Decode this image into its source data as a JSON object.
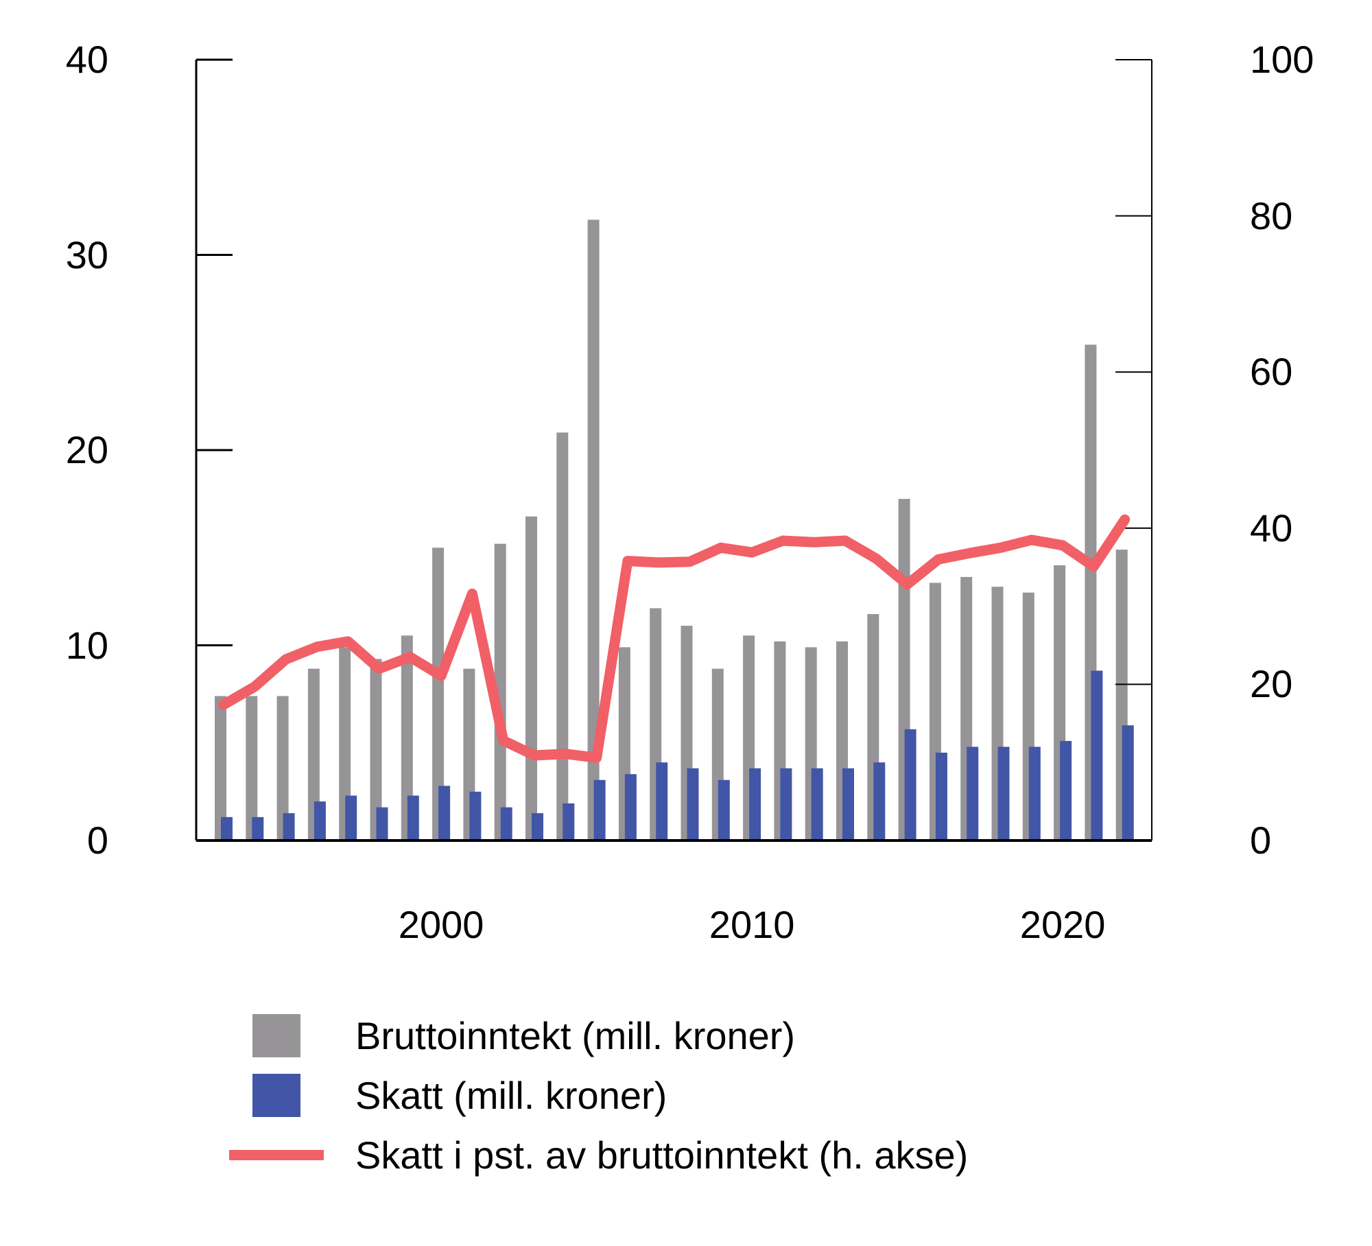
{
  "chart_data": {
    "type": "bar",
    "title": "",
    "xlabel": "",
    "ylabel": "",
    "y2label": "",
    "x": [
      1993,
      1994,
      1995,
      1996,
      1997,
      1998,
      1999,
      2000,
      2001,
      2002,
      2003,
      2004,
      2005,
      2006,
      2007,
      2008,
      2009,
      2010,
      2011,
      2012,
      2013,
      2014,
      2015,
      2016,
      2017,
      2018,
      2019,
      2020,
      2021,
      2022
    ],
    "x_tick_labels": [
      "2000",
      "2010",
      "2020"
    ],
    "x_ticks": [
      2000,
      2010,
      2020
    ],
    "ylim": [
      0,
      40
    ],
    "y_ticks": [
      0,
      10,
      20,
      30,
      40
    ],
    "y2lim": [
      0,
      100
    ],
    "y2_ticks": [
      0,
      20,
      40,
      60,
      80,
      100
    ],
    "grid": false,
    "legend_position": "bottom",
    "series": [
      {
        "name": "Bruttoinntekt (mill. kroner)",
        "type": "bar",
        "axis": "left",
        "color": "#969497",
        "values": [
          7.4,
          7.4,
          7.4,
          8.8,
          9.9,
          9.3,
          10.5,
          15.0,
          8.8,
          15.2,
          16.6,
          20.9,
          31.8,
          9.9,
          11.9,
          11.0,
          8.8,
          10.5,
          10.2,
          9.9,
          10.2,
          11.6,
          17.5,
          13.2,
          13.5,
          13.0,
          12.7,
          14.1,
          25.4,
          14.9
        ]
      },
      {
        "name": "Skatt (mill. kroner)",
        "type": "bar",
        "axis": "left",
        "color": "#4156A6",
        "values": [
          1.2,
          1.2,
          1.4,
          2.0,
          2.3,
          1.7,
          2.3,
          2.8,
          2.5,
          1.7,
          1.4,
          1.9,
          3.1,
          3.4,
          4.0,
          3.7,
          3.1,
          3.7,
          3.7,
          3.7,
          3.7,
          4.0,
          5.7,
          4.5,
          4.8,
          4.8,
          4.8,
          5.1,
          8.7,
          5.9
        ]
      },
      {
        "name": "Skatt i pst. av bruttoinntekt (h. akse)",
        "type": "line",
        "axis": "right",
        "color": "#F06066",
        "values": [
          17.4,
          19.7,
          23.2,
          24.8,
          25.5,
          22.0,
          23.5,
          21.1,
          31.6,
          12.8,
          10.9,
          11.1,
          10.6,
          35.8,
          35.6,
          35.7,
          37.5,
          36.9,
          38.4,
          38.2,
          38.4,
          36.1,
          32.8,
          36.0,
          36.8,
          37.5,
          38.5,
          37.8,
          35.1,
          41.1
        ]
      }
    ]
  },
  "axes": {
    "left_ticks": [
      "0",
      "10",
      "20",
      "30",
      "40"
    ],
    "right_ticks": [
      "0",
      "20",
      "40",
      "60",
      "80",
      "100"
    ],
    "x_ticks": [
      "2000",
      "2010",
      "2020"
    ]
  },
  "legend": {
    "items": [
      {
        "label": "Bruttoinntekt (mill. kroner)",
        "kind": "bar",
        "color": "#969497"
      },
      {
        "label": "Skatt (mill. kroner)",
        "kind": "bar",
        "color": "#4156A6"
      },
      {
        "label": "Skatt i pst. av bruttoinntekt (h. akse)",
        "kind": "line",
        "color": "#F06066"
      }
    ]
  }
}
